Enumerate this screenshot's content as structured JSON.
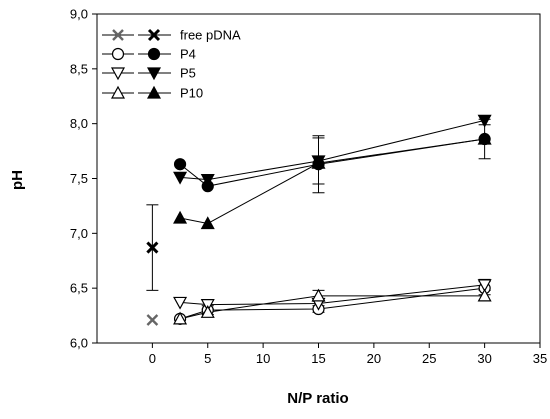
{
  "chart_data": {
    "type": "line",
    "xlabel": "N/P ratio",
    "ylabel": "pH",
    "xlim": [
      -5,
      35
    ],
    "ylim": [
      6.0,
      9.0
    ],
    "xticks": [
      0,
      5,
      10,
      15,
      20,
      25,
      30,
      35
    ],
    "yticks": [
      "6,0",
      "6,5",
      "7,0",
      "7,5",
      "8,0",
      "8,5",
      "9,0"
    ],
    "ytick_values": [
      6.0,
      6.5,
      7.0,
      7.5,
      8.0,
      8.5,
      9.0
    ],
    "legend_position": "top-left",
    "series": [
      {
        "name": "free pDNA",
        "marker": "x",
        "condition": "open",
        "points": [
          {
            "x": 0,
            "y": 6.21
          }
        ]
      },
      {
        "name": "free pDNA",
        "marker": "x",
        "condition": "filled",
        "points": [
          {
            "x": 0,
            "y": 6.87,
            "err": 0.39
          }
        ]
      },
      {
        "name": "P4",
        "marker": "circle",
        "condition": "open",
        "points": [
          {
            "x": 2.5,
            "y": 6.22
          },
          {
            "x": 5,
            "y": 6.3,
            "err": 0.04
          },
          {
            "x": 15,
            "y": 6.31,
            "err": 0.03
          },
          {
            "x": 30,
            "y": 6.5,
            "err": 0.06
          }
        ]
      },
      {
        "name": "P4",
        "marker": "circle",
        "condition": "filled",
        "points": [
          {
            "x": 2.5,
            "y": 7.63
          },
          {
            "x": 5,
            "y": 7.43
          },
          {
            "x": 15,
            "y": 7.63,
            "err": 0.26
          },
          {
            "x": 30,
            "y": 7.86,
            "err": 0.18
          }
        ]
      },
      {
        "name": "P5",
        "marker": "triangle-down",
        "condition": "open",
        "points": [
          {
            "x": 2.5,
            "y": 6.37
          },
          {
            "x": 5,
            "y": 6.35,
            "err": 0.04
          },
          {
            "x": 15,
            "y": 6.36
          },
          {
            "x": 30,
            "y": 6.53,
            "err": 0.05
          }
        ]
      },
      {
        "name": "P5",
        "marker": "triangle-down",
        "condition": "filled",
        "points": [
          {
            "x": 2.5,
            "y": 7.51
          },
          {
            "x": 5,
            "y": 7.49
          },
          {
            "x": 15,
            "y": 7.66,
            "err": 0.21
          },
          {
            "x": 30,
            "y": 8.03,
            "err": 0.04
          }
        ]
      },
      {
        "name": "P10",
        "marker": "triangle-up",
        "condition": "open",
        "points": [
          {
            "x": 2.5,
            "y": 6.22
          },
          {
            "x": 5,
            "y": 6.28
          },
          {
            "x": 15,
            "y": 6.43,
            "err": 0.05
          },
          {
            "x": 30,
            "y": 6.43
          }
        ]
      },
      {
        "name": "P10",
        "marker": "triangle-up",
        "condition": "filled",
        "points": [
          {
            "x": 2.5,
            "y": 7.14
          },
          {
            "x": 5,
            "y": 7.09
          },
          {
            "x": 15,
            "y": 7.64
          },
          {
            "x": 30,
            "y": 7.86
          }
        ]
      }
    ],
    "legend": [
      {
        "label": "free pDNA",
        "marker": "x"
      },
      {
        "label": "P4",
        "marker": "circle"
      },
      {
        "label": "P5",
        "marker": "triangle-down"
      },
      {
        "label": "P10",
        "marker": "triangle-up"
      }
    ]
  }
}
